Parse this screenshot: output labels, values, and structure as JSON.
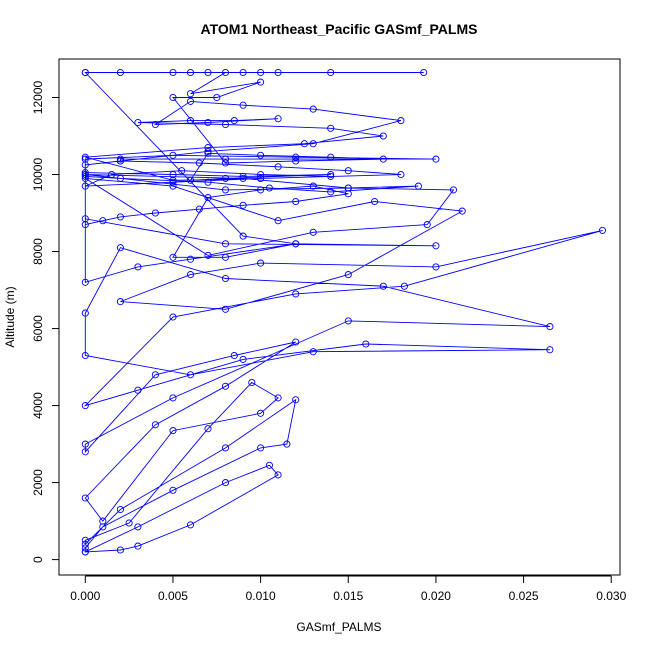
{
  "chart_data": {
    "type": "line",
    "title": "ATOM1 Northeast_Pacific GASmf_PALMS",
    "xlabel": "GASmf_PALMS",
    "ylabel": "Altitude (m)",
    "xlim": [
      -0.0015,
      0.0305
    ],
    "ylim": [
      -400,
      13000
    ],
    "xticks": [
      0.0,
      0.005,
      0.01,
      0.015,
      0.02,
      0.025,
      0.03
    ],
    "xtick_labels": [
      "0.000",
      "0.005",
      "0.010",
      "0.015",
      "0.020",
      "0.025",
      "0.030"
    ],
    "yticks": [
      0,
      2000,
      4000,
      6000,
      8000,
      10000,
      12000
    ],
    "ytick_labels": [
      "0",
      "2000",
      "4000",
      "6000",
      "8000",
      "10000",
      "12000"
    ],
    "grid": false,
    "series": [
      {
        "color": "#0000ff",
        "marker": "open-circle",
        "x": [
          0.0,
          0.002,
          0.003,
          0.006,
          0.011,
          0.0105,
          0.008,
          0.003,
          0.0,
          0.0,
          0.001,
          0.005,
          0.01,
          0.0115,
          0.012,
          0.008,
          0.002,
          0.0,
          0.0,
          0.0025,
          0.007,
          0.0095,
          0.011,
          0.01,
          0.005,
          0.001,
          0.0,
          0.004,
          0.008,
          0.012,
          0.0085,
          0.004,
          0.0,
          0.0,
          0.005,
          0.015,
          0.0265,
          0.017,
          0.008,
          0.002,
          0.0,
          0.0,
          0.006,
          0.013,
          0.0265,
          0.016,
          0.009,
          0.003,
          0.0,
          0.005,
          0.012,
          0.0182,
          0.0295,
          0.02,
          0.01,
          0.006,
          0.002,
          0.008,
          0.015,
          0.0215,
          0.0165,
          0.011,
          0.005,
          0.0,
          0.007,
          0.013,
          0.0195,
          0.021,
          0.015,
          0.009,
          0.0,
          0.0,
          0.008,
          0.02,
          0.012,
          0.006,
          0.003,
          0.0,
          0.0,
          0.002,
          0.007,
          0.0105,
          0.014,
          0.019,
          0.015,
          0.008,
          0.0,
          0.0,
          0.005,
          0.012,
          0.02,
          0.008,
          0.002,
          0.002,
          0.0065,
          0.011,
          0.015,
          0.018,
          0.01,
          0.005,
          0.0,
          0.0015,
          0.0055,
          0.01,
          0.014,
          0.01,
          0.005,
          0.0,
          0.007,
          0.0125,
          0.017,
          0.014,
          0.008,
          0.003,
          0.006,
          0.0085,
          0.011,
          0.007,
          0.004,
          0.006,
          0.009,
          0.013,
          0.018,
          0.013,
          0.007,
          0.002,
          0.0,
          0.0,
          0.005,
          0.009,
          0.014,
          0.008,
          0.006,
          0.007,
          0.01,
          0.014,
          0.017,
          0.012,
          0.008,
          0.005,
          0.0075,
          0.01,
          0.006,
          0.008,
          0.011,
          0.009,
          0.005,
          0.0,
          0.007,
          0.014,
          0.0193,
          0.01,
          0.006,
          0.002,
          0.0,
          0.009,
          0.012,
          0.008,
          0.005,
          0.007,
          0.01,
          0.013,
          0.015,
          0.012,
          0.009,
          0.0065,
          0.004,
          0.002,
          0.001,
          0.0
        ],
        "y": [
          200,
          250,
          350,
          900,
          2200,
          2450,
          2000,
          850,
          200,
          300,
          850,
          1800,
          2900,
          3000,
          4150,
          2900,
          1300,
          400,
          500,
          950,
          3400,
          4600,
          4200,
          3800,
          3350,
          1000,
          1600,
          3500,
          4500,
          5650,
          5300,
          4800,
          2800,
          3000,
          4200,
          6200,
          6050,
          7100,
          7300,
          8100,
          6400,
          5300,
          4800,
          5400,
          5450,
          5600,
          5200,
          4400,
          4000,
          6300,
          6900,
          7100,
          8550,
          7600,
          7700,
          7400,
          6700,
          6500,
          7400,
          9050,
          9300,
          8800,
          9700,
          9900,
          7900,
          8500,
          8700,
          9600,
          9650,
          9900,
          10000,
          8850,
          8200,
          8150,
          8200,
          7800,
          7600,
          7200,
          9950,
          9900,
          9800,
          9650,
          9550,
          9700,
          9650,
          9600,
          10000,
          10400,
          10500,
          10450,
          10400,
          10400,
          10400,
          10350,
          10300,
          10200,
          10100,
          10000,
          9900,
          9800,
          9700,
          10000,
          10100,
          10000,
          9950,
          9900,
          9850,
          10450,
          10700,
          10800,
          11000,
          11200,
          11300,
          11350,
          11400,
          11400,
          11450,
          11350,
          11300,
          11900,
          11800,
          11700,
          11400,
          10800,
          10600,
          10350,
          10250,
          10050,
          10000,
          9950,
          10000,
          9900,
          9850,
          10550,
          10500,
          10450,
          10400,
          10350,
          10300,
          12000,
          12000,
          12400,
          12100,
          12650,
          12650,
          12650,
          12650,
          12650,
          12650,
          12650,
          12650,
          12650,
          12650,
          12650,
          12650,
          8400,
          8200,
          7850,
          7850,
          9400,
          9600,
          9700,
          9500,
          9300,
          9200,
          9100,
          9000,
          8900,
          8800,
          8700
        ]
      }
    ]
  }
}
